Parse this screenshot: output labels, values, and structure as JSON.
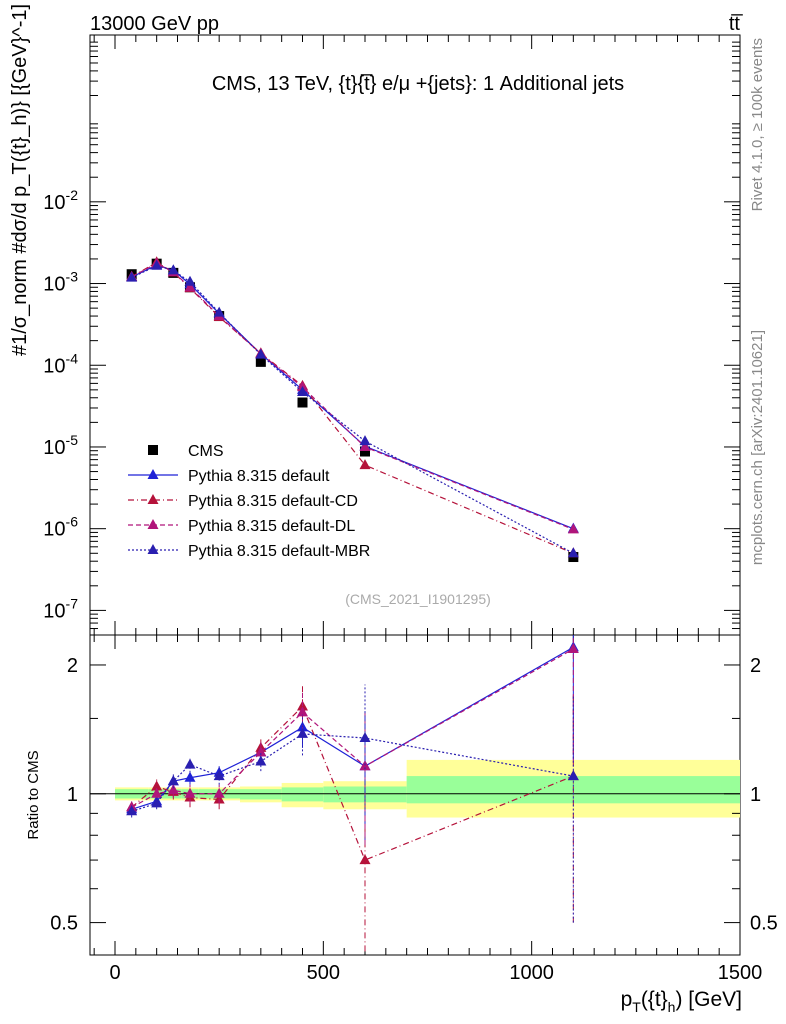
{
  "header": {
    "left": "13000 GeV pp",
    "right": "tt̅"
  },
  "side_labels": {
    "rivet": "Rivet 4.1.0, ≥ 100k events",
    "mcplots": "mcplots.cern.ch [arXiv:2401.10621]"
  },
  "chart_data": {
    "type": "scatter",
    "title": "CMS, 13 TeV, {t}{t̅} e/μ +{jets}: 1 Additional jets",
    "watermark": "(CMS_2021_I1901295)",
    "xlabel": "p_T({t}_h) [GeV]",
    "xlabel_main": "p",
    "xlabel_sub1": "T",
    "xlabel_mid": "({t}",
    "xlabel_sub2": "h",
    "xlabel_end": ") [GeV]",
    "ylabel": "#1/σ_norm #dσ/d p_T({t}_h)} [{GeV}^-1]",
    "xlim": [
      -60,
      1500
    ],
    "x_ticks": [
      "0",
      "500",
      "1000",
      "1500"
    ],
    "top": {
      "yscale": "log",
      "ylim": [
        5e-08,
        1.1
      ],
      "y_ticks": [
        {
          "base": "10",
          "exp": "-2",
          "value": 0.01
        },
        {
          "base": "10",
          "exp": "-3",
          "value": 0.001
        },
        {
          "base": "10",
          "exp": "-4",
          "value": 0.0001
        },
        {
          "base": "10",
          "exp": "-5",
          "value": 1e-05
        },
        {
          "base": "10",
          "exp": "-6",
          "value": 1e-06
        },
        {
          "base": "10",
          "exp": "-7",
          "value": 1e-07
        }
      ]
    },
    "ratio": {
      "ylabel": "Ratio to CMS",
      "yscale": "log",
      "ylim": [
        0.42,
        2.35
      ],
      "y_ticks": [
        {
          "label": "2",
          "value": 2
        },
        {
          "label": "1",
          "value": 1
        },
        {
          "label": "0.5",
          "value": 0.5
        }
      ],
      "bands": [
        {
          "x0": 0,
          "x1": 80,
          "yellow": [
            0.965,
            1.035
          ],
          "green": [
            0.975,
            1.025
          ]
        },
        {
          "x0": 80,
          "x1": 120,
          "yellow": [
            0.965,
            1.035
          ],
          "green": [
            0.975,
            1.025
          ]
        },
        {
          "x0": 120,
          "x1": 160,
          "yellow": [
            0.965,
            1.035
          ],
          "green": [
            0.975,
            1.025
          ]
        },
        {
          "x0": 160,
          "x1": 200,
          "yellow": [
            0.965,
            1.035
          ],
          "green": [
            0.975,
            1.025
          ]
        },
        {
          "x0": 200,
          "x1": 300,
          "yellow": [
            0.965,
            1.035
          ],
          "green": [
            0.975,
            1.025
          ]
        },
        {
          "x0": 300,
          "x1": 400,
          "yellow": [
            0.955,
            1.04
          ],
          "green": [
            0.97,
            1.025
          ]
        },
        {
          "x0": 400,
          "x1": 500,
          "yellow": [
            0.93,
            1.06
          ],
          "green": [
            0.96,
            1.035
          ]
        },
        {
          "x0": 500,
          "x1": 700,
          "yellow": [
            0.92,
            1.07
          ],
          "green": [
            0.955,
            1.04
          ]
        },
        {
          "x0": 700,
          "x1": 1500,
          "yellow": [
            0.88,
            1.2
          ],
          "green": [
            0.95,
            1.1
          ]
        }
      ]
    },
    "x": [
      40,
      100,
      140,
      180,
      250,
      350,
      450,
      600,
      1100
    ],
    "series": [
      {
        "name": "CMS",
        "style": "data",
        "color": "#000000",
        "marker": "square",
        "values": [
          0.0013,
          0.00175,
          0.00135,
          0.0009,
          0.0004,
          0.00011,
          3.5e-05,
          8.8e-06,
          4.5e-07
        ],
        "errors": [
          3e-05,
          3e-05,
          3e-05,
          2e-05,
          1e-05,
          3e-06,
          1e-06,
          4e-07,
          3e-08
        ]
      },
      {
        "name": "Pythia 8.315 default",
        "style": "solid",
        "color": "#1f22d6",
        "marker": "triangle",
        "values": [
          0.0012,
          0.00168,
          0.00145,
          0.00098,
          0.00043,
          0.000138,
          5e-05,
          1.02e-05,
          1e-06
        ],
        "ratio": [
          0.92,
          0.96,
          1.07,
          1.09,
          1.12,
          1.25,
          1.43,
          1.16,
          2.2
        ],
        "ratio_err": [
          0.03,
          0.03,
          0.03,
          0.04,
          0.04,
          0.06,
          0.15,
          0.4,
          1.0
        ]
      },
      {
        "name": "Pythia 8.315 default-CD",
        "style": "dashdot",
        "color": "#b5123a",
        "marker": "triangle",
        "values": [
          0.00121,
          0.00182,
          0.00137,
          0.00088,
          0.00039,
          0.00014,
          5.6e-05,
          6e-06,
          5e-07
        ],
        "ratio": [
          0.93,
          1.04,
          1.01,
          0.98,
          0.97,
          1.28,
          1.6,
          0.7,
          1.1
        ],
        "ratio_err": [
          0.03,
          0.04,
          0.04,
          0.05,
          0.05,
          0.07,
          0.2,
          0.3,
          0.6
        ]
      },
      {
        "name": "Pythia 8.315 default-DL",
        "style": "dashed",
        "color": "#b0157a",
        "marker": "triangle",
        "values": [
          0.00121,
          0.00176,
          0.00138,
          0.0009,
          0.0004,
          0.000138,
          5.4e-05,
          1e-05,
          9.8e-07
        ],
        "ratio": [
          0.93,
          1.0,
          1.02,
          1.0,
          1.0,
          1.25,
          1.55,
          1.16,
          2.18
        ],
        "ratio_err": [
          0.03,
          0.04,
          0.04,
          0.05,
          0.05,
          0.07,
          0.2,
          0.4,
          1.0
        ]
      },
      {
        "name": "Pythia 8.315 default-MBR",
        "style": "dotted",
        "color": "#2a1fb0",
        "marker": "triangle",
        "values": [
          0.00118,
          0.00165,
          0.00145,
          0.00105,
          0.00044,
          0.000135,
          4.7e-05,
          1.18e-05,
          5e-07
        ],
        "ratio": [
          0.91,
          0.95,
          1.07,
          1.17,
          1.1,
          1.19,
          1.38,
          1.35,
          1.1
        ],
        "ratio_err": [
          0.03,
          0.03,
          0.04,
          0.05,
          0.05,
          0.06,
          0.15,
          0.45,
          0.6
        ]
      }
    ]
  }
}
